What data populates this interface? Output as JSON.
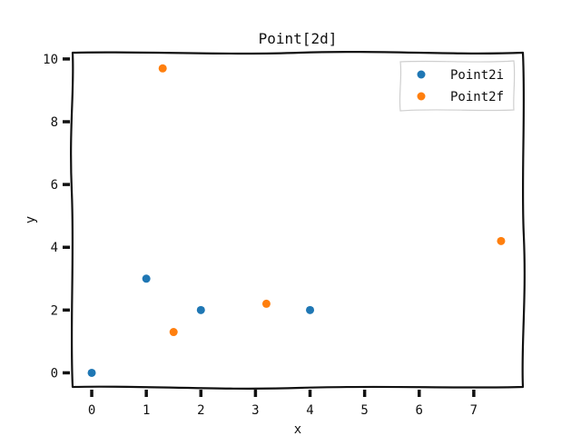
{
  "chart_data": {
    "type": "scatter",
    "title": "Point[2d]",
    "xlabel": "x",
    "ylabel": "y",
    "xlim": [
      -0.35,
      7.9
    ],
    "ylim": [
      -0.45,
      10.2
    ],
    "xticks": [
      0,
      1,
      2,
      3,
      4,
      5,
      6,
      7
    ],
    "yticks": [
      0,
      2,
      4,
      6,
      8,
      10
    ],
    "grid": false,
    "legend_position": "top-right",
    "series": [
      {
        "name": "Point2i",
        "color": "#1f77b4",
        "points": [
          [
            0,
            0
          ],
          [
            1,
            3
          ],
          [
            2,
            2
          ],
          [
            4,
            2
          ]
        ]
      },
      {
        "name": "Point2f",
        "color": "#ff7f0e",
        "points": [
          [
            1.3,
            9.7
          ],
          [
            1.5,
            1.3
          ],
          [
            3.2,
            2.2
          ],
          [
            7.5,
            4.2
          ]
        ]
      }
    ]
  }
}
